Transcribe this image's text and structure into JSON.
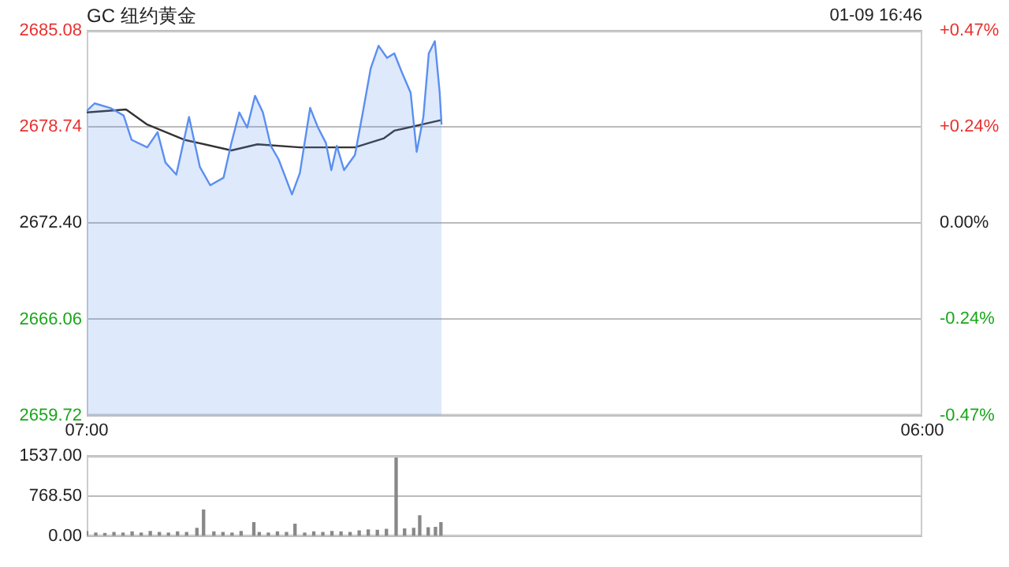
{
  "chart_data": [
    {
      "type": "area",
      "title": "GC 纽约黄金",
      "annotations": [
        "01-09 16:46"
      ],
      "xlim": [
        "--01-09T07:00",
        "--01-10T06:00"
      ],
      "xticks": [
        {
          "value": "--01-09T07:00",
          "label": "07:00"
        },
        {
          "value": "--01-10T06:00",
          "label": "06:00"
        }
      ],
      "ylim": [
        2659.72,
        2685.08
      ],
      "yticks": [
        {
          "value": 2659.72,
          "label": "2659.72"
        },
        {
          "value": 2666.06,
          "label": "2666.06"
        },
        {
          "value": 2672.4,
          "label": "2672.40"
        },
        {
          "value": 2678.74,
          "label": "2678.74"
        },
        {
          "value": 2685.08,
          "label": "2685.08"
        }
      ],
      "y2lim": [
        -0.4745,
        0.4745
      ],
      "y2ticks": [
        {
          "value": -0.4745,
          "label": "-0.47%"
        },
        {
          "value": -0.237,
          "label": "-0.24%"
        },
        {
          "value": 0,
          "label": "0.00%"
        },
        {
          "value": 0.237,
          "label": "+0.24%"
        },
        {
          "value": 0.4745,
          "label": "+0.47%"
        }
      ],
      "grid": "y",
      "legend": false,
      "marker": "none",
      "series": [
        {
          "type": "area",
          "color": "#5b8ff0",
          "x": [
            "--01-09T07:00",
            "--01-09T07:13",
            "--01-09T07:39",
            "--01-09T08:01",
            "--01-09T08:14",
            "--01-09T08:40",
            "--01-09T08:57",
            "--01-09T09:10",
            "--01-09T09:28",
            "--01-09T09:49",
            "--01-09T10:07",
            "--01-09T10:24",
            "--01-09T10:46",
            "--01-09T10:59",
            "--01-09T11:12",
            "--01-09T11:25",
            "--01-09T11:38",
            "--01-09T11:51",
            "--01-09T12:04",
            "--01-09T12:17",
            "--01-09T12:39",
            "--01-09T12:52",
            "--01-09T13:09",
            "--01-09T13:22",
            "--01-09T13:35",
            "--01-09T13:44",
            "--01-09T13:53",
            "--01-09T14:05",
            "--01-09T14:23",
            "--01-09T14:36",
            "--01-09T14:49",
            "--01-09T15:02",
            "--01-09T15:16",
            "--01-09T15:28",
            "--01-09T15:41",
            "--01-09T15:55",
            "--01-09T16:05",
            "--01-09T16:16",
            "--01-09T16:25",
            "--01-09T16:35",
            "--01-09T16:43",
            "--01-09T16:46"
          ],
          "values": [
            2679.8,
            2680.3,
            2680.0,
            2679.5,
            2677.9,
            2677.4,
            2678.4,
            2676.4,
            2675.6,
            2679.4,
            2676.1,
            2674.9,
            2675.4,
            2677.7,
            2679.7,
            2678.7,
            2680.8,
            2679.7,
            2677.5,
            2676.6,
            2674.3,
            2675.7,
            2680.0,
            2678.7,
            2677.7,
            2675.9,
            2677.5,
            2675.9,
            2676.9,
            2679.7,
            2682.6,
            2684.1,
            2683.3,
            2683.6,
            2682.3,
            2681.0,
            2677.1,
            2679.4,
            2683.6,
            2684.4,
            2681.0,
            2678.9
          ]
        },
        {
          "type": "line",
          "color": "#333333",
          "x": [
            "--01-09T07:00",
            "--01-09T08:05",
            "--01-09T08:40",
            "--01-09T09:41",
            "--01-09T10:59",
            "--01-09T11:42",
            "--01-09T12:52",
            "--01-09T14:23",
            "--01-09T15:11",
            "--01-09T15:28",
            "--01-09T16:46"
          ],
          "values": [
            2679.7,
            2679.9,
            2678.9,
            2677.9,
            2677.2,
            2677.6,
            2677.4,
            2677.4,
            2678.0,
            2678.5,
            2679.2
          ]
        }
      ]
    },
    {
      "type": "bar",
      "xlim": [
        "--01-09T07:00",
        "--01-10T06:00"
      ],
      "ylim": [
        0,
        1537
      ],
      "yticks": [
        {
          "value": 0,
          "label": "0.00"
        },
        {
          "value": 768.5,
          "label": "768.50"
        },
        {
          "value": 1537,
          "label": "1537.00"
        }
      ],
      "tick_labels": "y",
      "grid": "y",
      "legend": false,
      "series": [
        {
          "color": "#888888",
          "x": [
            "--01-09T07:00",
            "--01-09T07:15",
            "--01-09T07:30",
            "--01-09T07:45",
            "--01-09T08:00",
            "--01-09T08:15",
            "--01-09T08:30",
            "--01-09T08:45",
            "--01-09T09:00",
            "--01-09T09:15",
            "--01-09T09:30",
            "--01-09T09:45",
            "--01-09T10:02",
            "--01-09T10:13",
            "--01-09T10:30",
            "--01-09T10:45",
            "--01-09T11:00",
            "--01-09T11:15",
            "--01-09T11:36",
            "--01-09T11:45",
            "--01-09T12:00",
            "--01-09T12:15",
            "--01-09T12:30",
            "--01-09T12:44",
            "--01-09T13:00",
            "--01-09T13:15",
            "--01-09T13:30",
            "--01-09T13:45",
            "--01-09T14:00",
            "--01-09T14:15",
            "--01-09T14:30",
            "--01-09T14:45",
            "--01-09T15:00",
            "--01-09T15:15",
            "--01-09T15:31",
            "--01-09T15:45",
            "--01-09T16:00",
            "--01-09T16:10",
            "--01-09T16:24",
            "--01-09T16:36",
            "--01-09T16:45"
          ],
          "values": [
            90,
            60,
            50,
            70,
            60,
            80,
            60,
            90,
            70,
            60,
            80,
            70,
            150,
            500,
            80,
            70,
            60,
            90,
            260,
            70,
            60,
            80,
            70,
            230,
            60,
            80,
            70,
            90,
            80,
            70,
            100,
            120,
            110,
            130,
            1500,
            140,
            150,
            390,
            160,
            170,
            260
          ]
        }
      ]
    }
  ]
}
